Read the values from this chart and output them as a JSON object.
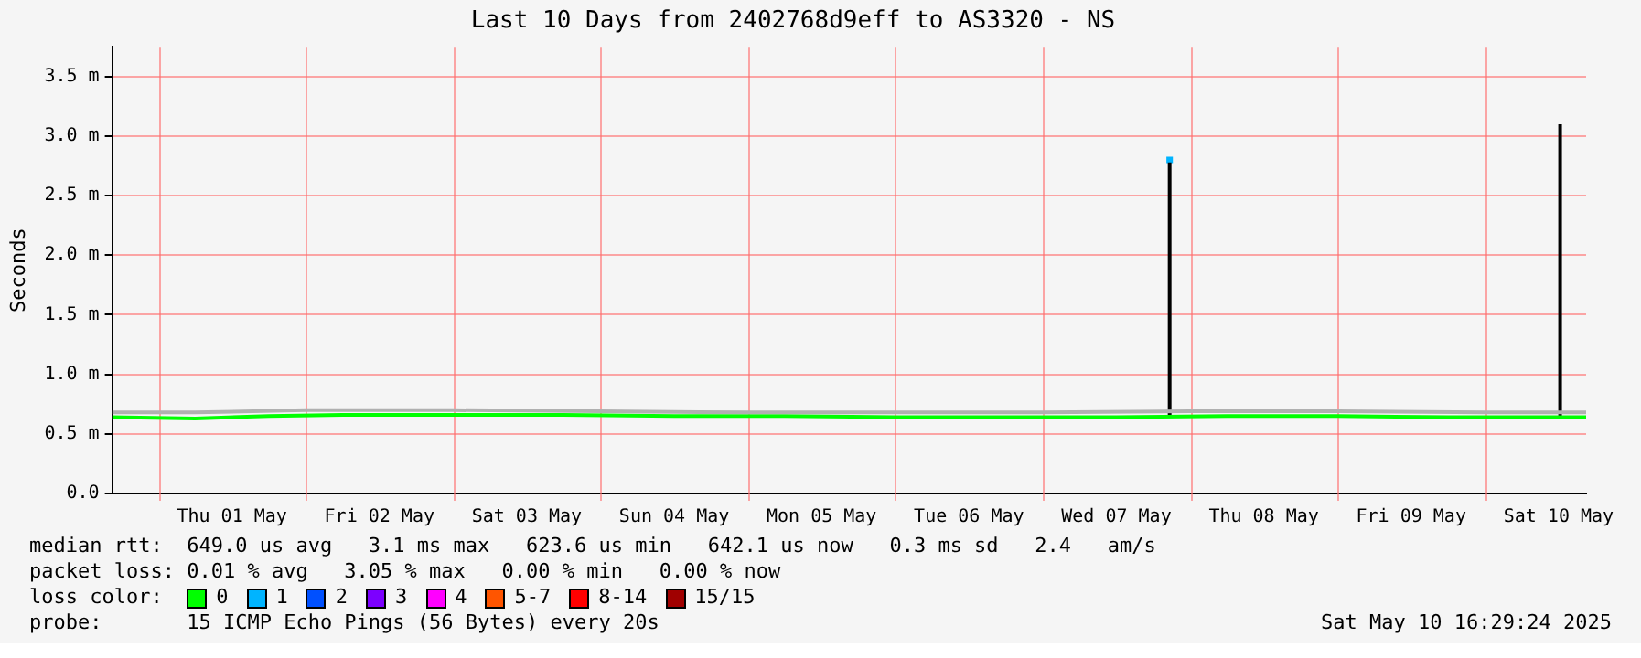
{
  "chart_data": {
    "type": "line",
    "title": "Last 10 Days from 2402768d9eff to AS3320 - NS",
    "ylabel": "Seconds",
    "xlim": [
      "2025-04-30T16:29",
      "2025-05-10T16:29"
    ],
    "xticks": [
      {
        "value": "2025-05-01T00:00",
        "label": null
      },
      {
        "value": "2025-05-01T12:00",
        "label": "Thu 01 May"
      },
      {
        "value": "2025-05-02T00:00",
        "label": null
      },
      {
        "value": "2025-05-02T12:00",
        "label": "Fri 02 May"
      },
      {
        "value": "2025-05-03T00:00",
        "label": null
      },
      {
        "value": "2025-05-03T12:00",
        "label": "Sat 03 May"
      },
      {
        "value": "2025-05-04T00:00",
        "label": null
      },
      {
        "value": "2025-05-04T12:00",
        "label": "Sun 04 May"
      },
      {
        "value": "2025-05-05T00:00",
        "label": null
      },
      {
        "value": "2025-05-05T12:00",
        "label": "Mon 05 May"
      },
      {
        "value": "2025-05-06T00:00",
        "label": null
      },
      {
        "value": "2025-05-06T12:00",
        "label": "Tue 06 May"
      },
      {
        "value": "2025-05-07T00:00",
        "label": null
      },
      {
        "value": "2025-05-07T12:00",
        "label": "Wed 07 May"
      },
      {
        "value": "2025-05-08T00:00",
        "label": null
      },
      {
        "value": "2025-05-08T12:00",
        "label": "Thu 08 May"
      },
      {
        "value": "2025-05-09T00:00",
        "label": null
      },
      {
        "value": "2025-05-09T12:00",
        "label": "Fri 09 May"
      },
      {
        "value": "2025-05-10T00:00",
        "label": null
      },
      {
        "value": "2025-05-10T12:00",
        "label": "Sat 10 May"
      }
    ],
    "ylim": [
      0,
      3.75
    ],
    "yticks": [
      {
        "value": 0,
        "label": "0.0"
      },
      {
        "value": 0.5,
        "label": "0.5 m"
      },
      {
        "value": 1,
        "label": "1.0 m"
      },
      {
        "value": 1.5,
        "label": "1.5 m"
      },
      {
        "value": 2,
        "label": "2.0 m"
      },
      {
        "value": 2.5,
        "label": "2.5 m"
      },
      {
        "value": 3,
        "label": "3.0 m"
      },
      {
        "value": 3.5,
        "label": "3.5 m"
      }
    ],
    "grid": true,
    "legend": "bottom",
    "legend_title": "loss color:",
    "series": [
      {
        "color": "#b0b0b0",
        "x": [
          "2025-04-30T16:29",
          "2025-05-01T06:00",
          "2025-05-02T00:00",
          "2025-05-03T00:00",
          "2025-05-04T00:00",
          "2025-05-05T00:00",
          "2025-05-06T00:00",
          "2025-05-07T00:00",
          "2025-05-08T00:00",
          "2025-05-09T00:00",
          "2025-05-10T00:00",
          "2025-05-10T16:29"
        ],
        "values": [
          0.68,
          0.68,
          0.7,
          0.7,
          0.69,
          0.68,
          0.68,
          0.68,
          0.69,
          0.69,
          0.68,
          0.68
        ]
      },
      {
        "name": "0",
        "color": "#00ff00",
        "x": [
          "2025-04-30T16:29",
          "2025-05-01T06:00",
          "2025-05-01T18:00",
          "2025-05-02T06:00",
          "2025-05-03T00:00",
          "2025-05-03T18:00",
          "2025-05-04T12:00",
          "2025-05-05T06:00",
          "2025-05-06T00:00",
          "2025-05-06T18:00",
          "2025-05-07T12:00",
          "2025-05-08T06:00",
          "2025-05-09T00:00",
          "2025-05-09T18:00",
          "2025-05-10T06:00",
          "2025-05-10T16:29"
        ],
        "values": [
          0.64,
          0.63,
          0.65,
          0.66,
          0.66,
          0.66,
          0.65,
          0.65,
          0.64,
          0.64,
          0.64,
          0.65,
          0.65,
          0.64,
          0.64,
          0.64
        ]
      },
      {
        "color": "#000000",
        "x": [
          "2025-05-07T20:40",
          "2025-05-07T20:40",
          "2025-05-08T00:00",
          "2025-05-10T12:15",
          "2025-05-10T12:15"
        ],
        "values": [
          0.64,
          2.78,
          null,
          0.64,
          3.1
        ]
      },
      {
        "name": "1",
        "color": "#00b4ff",
        "marker": "square",
        "x": [
          "2025-05-07T20:40"
        ],
        "values": [
          2.8
        ]
      },
      {
        "name": "2",
        "color": "#0050ff"
      },
      {
        "name": "3",
        "color": "#7c00ff"
      },
      {
        "name": "4",
        "color": "#ff00ff"
      },
      {
        "name": "5-7",
        "color": "#ff5500"
      },
      {
        "name": "8-14",
        "color": "#ff0000"
      },
      {
        "name": "15/15",
        "color": "#a00000"
      }
    ],
    "annotations": [
      "median rtt:  649.0 us avg   3.1 ms max   623.6 us min   642.1 us now   0.3 ms sd   2.4   am/s",
      "packet loss: 0.01 % avg   3.05 % max   0.00 % min   0.00 % now",
      "probe:       15 ICMP Echo Pings (56 Bytes) every 20s",
      "Sat May 10 16:29:24 2025"
    ]
  }
}
